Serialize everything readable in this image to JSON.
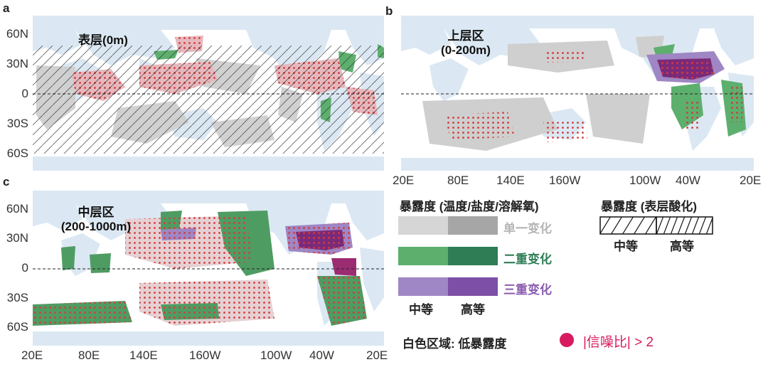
{
  "panels": {
    "a": {
      "letter": "a",
      "title_line1": "表层",
      "title_line2": "(0m)"
    },
    "b": {
      "letter": "b",
      "title_line1": "上层区",
      "title_line2": "(0-200m)"
    },
    "c": {
      "letter": "c",
      "title_line1": "中层区",
      "title_line2": "(200-1000m)"
    }
  },
  "lat_labels": [
    "60N",
    "30N",
    "0",
    "30S",
    "60S"
  ],
  "lon_labels": [
    "20E",
    "80E",
    "140E",
    "160W",
    "100W",
    "40W",
    "20E"
  ],
  "legend": {
    "exposure_title": "暴露度 (温度/盐度/溶解氧)",
    "acid_title": "暴露度 (表层酸化)",
    "single": "单一变化",
    "double": "二重变化",
    "triple": "三重变化",
    "moderate": "中等",
    "high": "高等",
    "acid_moderate": "中等",
    "acid_high": "高等",
    "white_region": "白色区域: 低暴露度",
    "snr": "|信噪比| > 2"
  },
  "colors": {
    "ocean": "#ffffff",
    "land": "#dbe8f3",
    "single_moderate": "#d6d6d6",
    "single_high": "#a6a6a6",
    "double_moderate": "#5daf6e",
    "double_high": "#2e7d55",
    "triple_moderate": "#9f86c4",
    "triple_high": "#7d4fa6",
    "high_exposure_purple": "#7a2a7a",
    "snr_dot": "#d81b60",
    "stipple_dot": "#c0392b",
    "single_text": "#b5b5b5",
    "double_text": "#2e7d55",
    "triple_text": "#8a5cb0",
    "snr_text": "#d81b60"
  }
}
